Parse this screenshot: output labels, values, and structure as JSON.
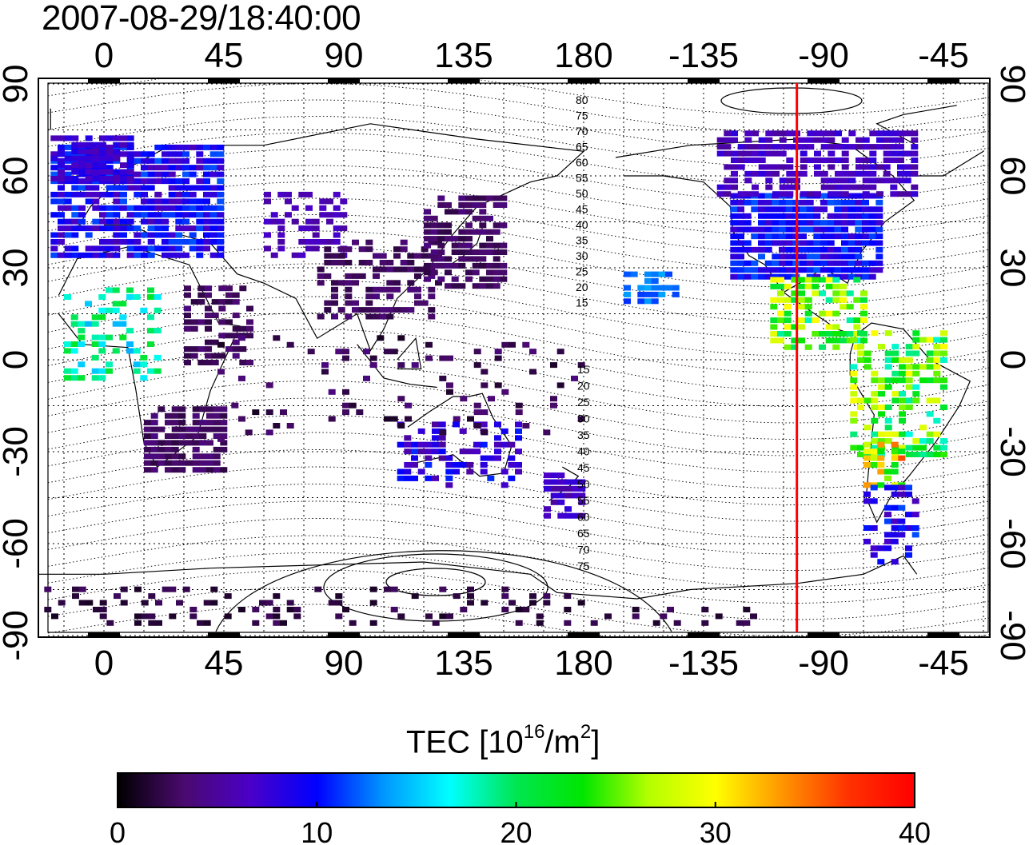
{
  "title": "2007-08-29/18:40:00",
  "map": {
    "top_lon_labels": [
      "0",
      "45",
      "90",
      "135",
      "180",
      "-135",
      "-90",
      "-45"
    ],
    "bottom_lon_labels": [
      "0",
      "45",
      "90",
      "135",
      "180",
      "-135",
      "-90",
      "-45"
    ],
    "left_lat_labels": [
      "90",
      "60",
      "30",
      "0",
      "-30",
      "-60",
      "-90"
    ],
    "right_lat_labels": [
      "90",
      "60",
      "30",
      "0",
      "-30",
      "-60",
      "-90"
    ],
    "contour_labels_north": [
      "80",
      "75",
      "70",
      "65",
      "60",
      "55",
      "50",
      "45",
      "40",
      "35",
      "30",
      "25",
      "20",
      "15"
    ],
    "contour_labels_south": [
      "15",
      "20",
      "25",
      "30",
      "35",
      "40",
      "45",
      "50",
      "55",
      "60",
      "65",
      "70",
      "75"
    ],
    "marker_line_lon": -100,
    "marker_line_color": "#ff0000"
  },
  "colorbar": {
    "label_main": "TEC  [10",
    "label_exp1": "16",
    "label_mid": "/m",
    "label_exp2": "2",
    "label_end": "]",
    "min": 0,
    "max": 40,
    "tick_labels": [
      "0",
      "10",
      "20",
      "30",
      "40"
    ],
    "colors": [
      "#000000",
      "#4a0a6e",
      "#4a00c8",
      "#0000ff",
      "#0096ff",
      "#00ffff",
      "#00e650",
      "#00e600",
      "#b4ff00",
      "#ffff00",
      "#ff9600",
      "#ff3200",
      "#ff0000"
    ]
  }
}
